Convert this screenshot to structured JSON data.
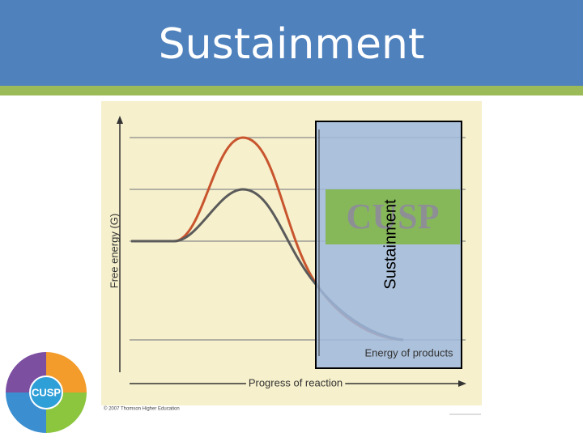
{
  "header": {
    "title": "Sustainment"
  },
  "figure": {
    "y_axis_label": "Free energy (G)",
    "x_axis_label": "Progress of reaction",
    "products_label": "Energy of products",
    "copyright": "© 2007 Thomson Higher Education"
  },
  "overlay": {
    "side_label": "Sustainment",
    "badge": "CUSP"
  },
  "logo": {
    "label": "CUSP"
  }
}
